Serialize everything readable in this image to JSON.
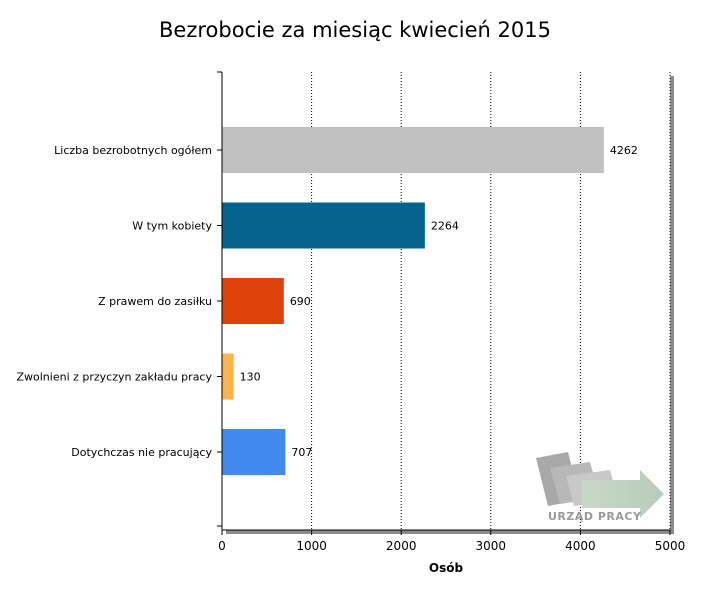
{
  "chart_data": {
    "type": "bar",
    "orientation": "horizontal",
    "title": "Bezrobocie za miesiąc kwiecień 2015",
    "categories": [
      "Liczba bezrobotnych ogółem",
      "W tym kobiety",
      "Z prawem do zasiłku",
      "Zwolnieni z przyczyn zakładu pracy",
      "Dotychczas nie pracujący"
    ],
    "values": [
      4262,
      2264,
      690,
      130,
      707
    ],
    "colors": [
      "#c0c0c0",
      "#06638f",
      "#e0420e",
      "#fdb34c",
      "#4189f0"
    ],
    "xlabel": "Osób",
    "ylabel": "",
    "xlim": [
      0,
      5000
    ],
    "xticks": [
      0,
      1000,
      2000,
      3000,
      4000,
      5000
    ],
    "grid": "vertical-dotted",
    "legend": "none"
  },
  "watermark": {
    "text": "URZĄD PRACY"
  }
}
